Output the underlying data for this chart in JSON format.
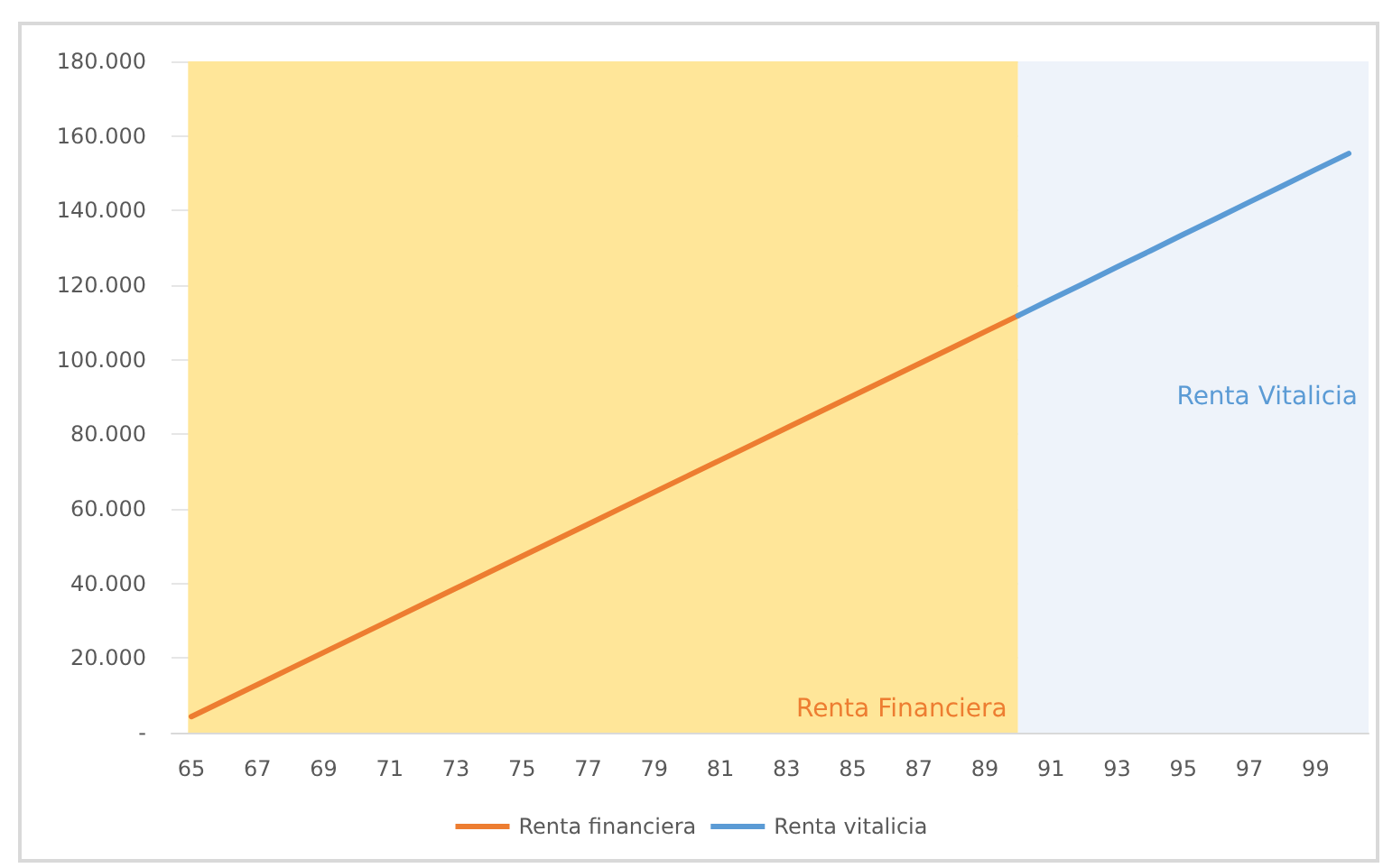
{
  "chart_data": {
    "type": "line",
    "x": [
      65,
      66,
      67,
      68,
      69,
      70,
      71,
      72,
      73,
      74,
      75,
      76,
      77,
      78,
      79,
      80,
      81,
      82,
      83,
      84,
      85,
      86,
      87,
      88,
      89,
      90,
      91,
      92,
      93,
      94,
      95,
      96,
      97,
      98,
      99,
      100
    ],
    "series": [
      {
        "name": "Renta financiera",
        "color": "#ed7d31",
        "values": [
          4300,
          8600,
          12900,
          17200,
          21500,
          25800,
          30100,
          34400,
          38700,
          43000,
          47300,
          51600,
          55900,
          60200,
          64500,
          68800,
          73100,
          77400,
          81700,
          86000,
          90300,
          94600,
          98900,
          103200,
          107500,
          111800,
          null,
          null,
          null,
          null,
          null,
          null,
          null,
          null,
          null,
          null
        ]
      },
      {
        "name": "Renta vitalicia",
        "color": "#5b9bd5",
        "values": [
          null,
          null,
          null,
          null,
          null,
          null,
          null,
          null,
          null,
          null,
          null,
          null,
          null,
          null,
          null,
          null,
          null,
          null,
          null,
          null,
          null,
          null,
          null,
          null,
          null,
          111800,
          116200,
          120500,
          124900,
          129200,
          133600,
          137900,
          142300,
          146600,
          151000,
          155300
        ]
      }
    ],
    "xlim": [
      64.4,
      100.6
    ],
    "xticks": [
      65,
      67,
      69,
      71,
      73,
      75,
      77,
      79,
      81,
      83,
      85,
      87,
      89,
      91,
      93,
      95,
      97,
      99
    ],
    "ylim": [
      0,
      180000
    ],
    "yticks": [
      {
        "value": 0,
        "label": "-"
      },
      {
        "value": 20000,
        "label": "20.000"
      },
      {
        "value": 40000,
        "label": "40.000"
      },
      {
        "value": 60000,
        "label": "60.000"
      },
      {
        "value": 80000,
        "label": "80.000"
      },
      {
        "value": 100000,
        "label": "100.000"
      },
      {
        "value": 120000,
        "label": "120.000"
      },
      {
        "value": 140000,
        "label": "140.000"
      },
      {
        "value": 160000,
        "label": "160.000"
      },
      {
        "value": 180000,
        "label": "180.000"
      }
    ],
    "bands": [
      {
        "axis": "x",
        "from": 64.9,
        "to": 90,
        "label": "Renta Financiera",
        "color": "#ffe699"
      },
      {
        "axis": "x",
        "from": 90,
        "to": 100.6,
        "label": "Renta Vitalicia",
        "color": "#eef3fa"
      }
    ],
    "grid": "y",
    "legend": "bottom",
    "marker": "none",
    "line_style": "solid"
  }
}
